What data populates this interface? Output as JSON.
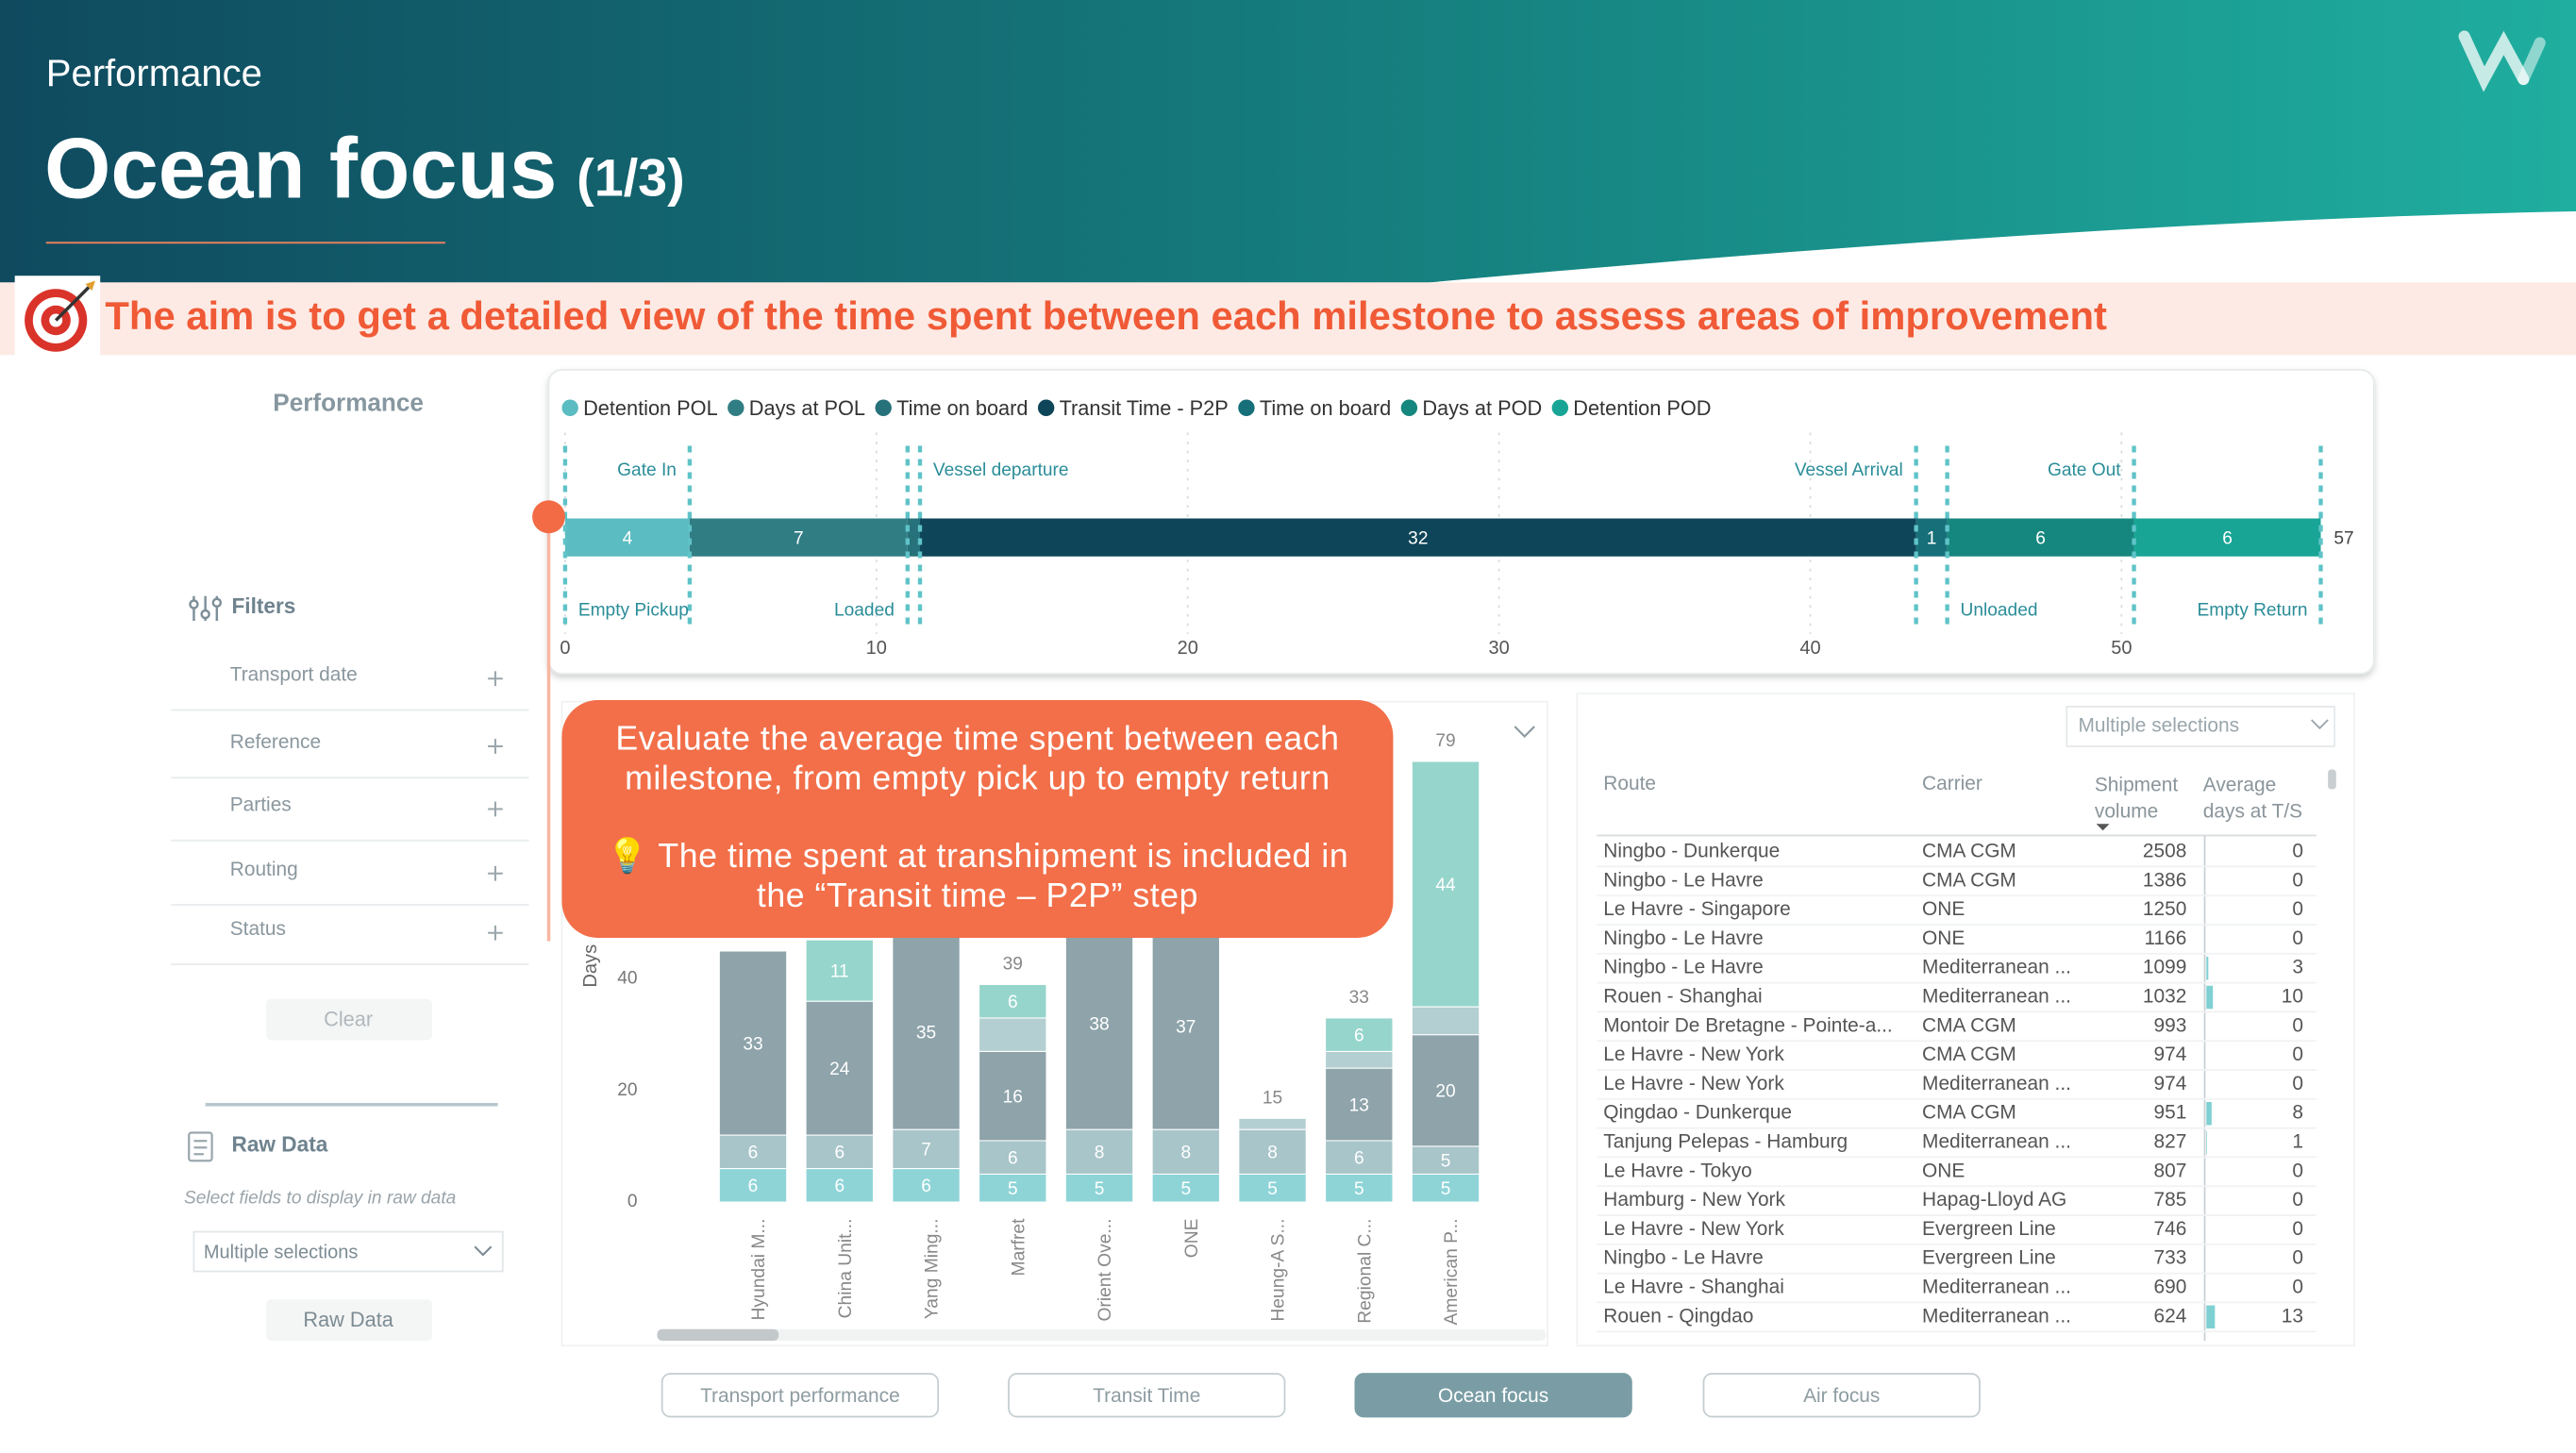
{
  "header": {
    "section": "Performance",
    "title": "Ocean focus",
    "subtitle": "(1/3)"
  },
  "aim": "The aim is to get a detailed view of the time spent between each milestone to assess areas of improvement",
  "sidebar": {
    "title": "Performance",
    "filters_title": "Filters",
    "filters": [
      "Transport date",
      "Reference",
      "Parties",
      "Routing",
      "Status"
    ],
    "clear": "Clear",
    "raw_data_title": "Raw Data",
    "raw_data_hint": "Select fields to display in raw data",
    "raw_data_select": "Multiple selections",
    "raw_data_button": "Raw Data"
  },
  "chart_data": [
    {
      "type": "stacked-bar",
      "orientation": "horizontal",
      "series": [
        {
          "name": "Detention POL",
          "color": "#5bbcc2",
          "values": [
            4
          ]
        },
        {
          "name": "Days at POL",
          "color": "#317d84",
          "values": [
            7
          ]
        },
        {
          "name": "Time on board",
          "color": "#27727a",
          "values": [
            0.4
          ]
        },
        {
          "name": "Transit Time - P2P",
          "color": "#0f4558",
          "values": [
            32
          ]
        },
        {
          "name": "Time on board",
          "color": "#176f79",
          "values": [
            1
          ]
        },
        {
          "name": "Days at POD",
          "color": "#16877e",
          "values": [
            6
          ]
        },
        {
          "name": "Detention POD",
          "color": "#19a596",
          "values": [
            6
          ]
        }
      ],
      "total": 57,
      "milestones_top": [
        "Gate In",
        "Vessel departure",
        "Vessel Arrival",
        "Gate Out"
      ],
      "milestones_bottom": [
        "Empty Pickup",
        "Loaded",
        "Unloaded",
        "Empty Return"
      ],
      "xlim": [
        0,
        57
      ],
      "xticks": [
        0,
        10,
        20,
        30,
        40,
        50
      ],
      "grid": true
    },
    {
      "type": "stacked-bar",
      "orientation": "vertical",
      "y_label": "Days",
      "categories": [
        "Hyundai M...",
        "China Unit...",
        "Yang Ming...",
        "Marfret",
        "Orient Ove...",
        "ONE",
        "Heung-A S...",
        "Regional C...",
        "American P..."
      ],
      "series": [
        {
          "color": "#8ed4d7",
          "show_labels": true,
          "values": [
            6,
            6,
            6,
            5,
            5,
            5,
            5,
            5,
            5
          ]
        },
        {
          "color": "#a8c5c9",
          "show_labels": true,
          "values": [
            6,
            6,
            7,
            6,
            8,
            8,
            8,
            6,
            5
          ]
        },
        {
          "color": "#8ea3aa",
          "show_labels": true,
          "values": [
            33,
            24,
            35,
            16,
            38,
            37,
            null,
            13,
            20
          ]
        },
        {
          "color": "#b3cfd1",
          "show_labels": false,
          "values": [
            null,
            null,
            null,
            6,
            null,
            null,
            2,
            3,
            5
          ]
        },
        {
          "color": "#96d5cc",
          "show_labels": true,
          "values": [
            null,
            11,
            null,
            6,
            null,
            null,
            null,
            6,
            44
          ]
        }
      ],
      "totals": [
        null,
        null,
        null,
        39,
        null,
        null,
        15,
        33,
        79
      ],
      "ylim": [
        0,
        82
      ],
      "yticks": [
        0,
        20,
        40
      ],
      "grid": false
    }
  ],
  "callout": [
    "Evaluate the average time spent between each milestone, from empty pick up to empty return",
    "💡 The time spent at transhipment is included in the “Transit time – P2P” step"
  ],
  "table": {
    "filter": "Multiple selections",
    "headers": [
      "Route",
      "Carrier",
      "Shipment volume",
      "Average days at T/S"
    ],
    "rows": [
      [
        "Ningbo - Dunkerque",
        "CMA CGM",
        2508,
        0
      ],
      [
        "Ningbo - Le Havre",
        "CMA CGM",
        1386,
        0
      ],
      [
        "Le Havre - Singapore",
        "ONE",
        1250,
        0
      ],
      [
        "Ningbo - Le Havre",
        "ONE",
        1166,
        0
      ],
      [
        "Ningbo - Le Havre",
        "Mediterranean ...",
        1099,
        3
      ],
      [
        "Rouen - Shanghai",
        "Mediterranean ...",
        1032,
        10
      ],
      [
        "Montoir De Bretagne - Pointe-a...",
        "CMA CGM",
        993,
        0
      ],
      [
        "Le Havre - New York",
        "CMA CGM",
        974,
        0
      ],
      [
        "Le Havre - New York",
        "Mediterranean ...",
        974,
        0
      ],
      [
        "Qingdao - Dunkerque",
        "CMA CGM",
        951,
        8
      ],
      [
        "Tanjung Pelepas - Hamburg",
        "Mediterranean ...",
        827,
        1
      ],
      [
        "Le Havre - Tokyo",
        "ONE",
        807,
        0
      ],
      [
        "Hamburg - New York",
        "Hapag-Lloyd AG",
        785,
        0
      ],
      [
        "Le Havre - New York",
        "Evergreen Line",
        746,
        0
      ],
      [
        "Ningbo - Le Havre",
        "Evergreen Line",
        733,
        0
      ],
      [
        "Le Havre - Shanghai",
        "Mediterranean ...",
        690,
        0
      ],
      [
        "Rouen - Qingdao",
        "Mediterranean ...",
        624,
        13
      ]
    ]
  },
  "nav": [
    "Transport performance",
    "Transit Time",
    "Ocean focus",
    "Air focus"
  ],
  "nav_active": 2
}
